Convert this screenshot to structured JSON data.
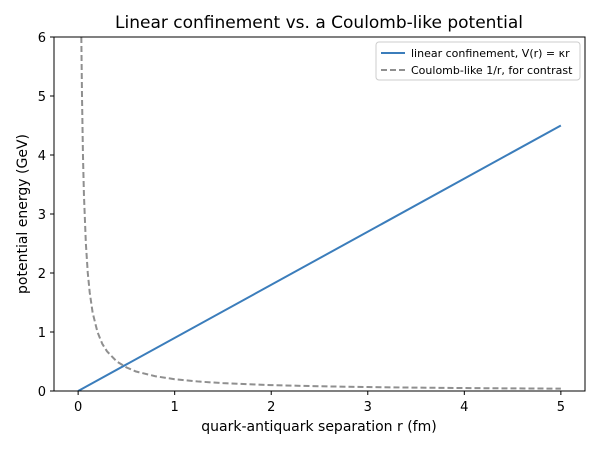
{
  "chart_data": {
    "type": "line",
    "title": "Linear confinement vs. a Coulomb-like potential",
    "xlabel": "quark-antiquark separation r (fm)",
    "ylabel": "potential energy (GeV)",
    "xlim": [
      -0.25,
      5.25
    ],
    "ylim": [
      0,
      6
    ],
    "xticks": [
      0,
      1,
      2,
      3,
      4,
      5
    ],
    "yticks": [
      0,
      1,
      2,
      3,
      4,
      5,
      6
    ],
    "grid": false,
    "legend_position": "top-right",
    "series": [
      {
        "name": "linear confinement, V(r) = κr",
        "style": "solid",
        "color": "#3b7dbb",
        "x": [
          0,
          5
        ],
        "y": [
          0,
          4.5
        ]
      },
      {
        "name": "Coulomb-like 1/r, for contrast",
        "style": "dashed",
        "color": "#8f8f8f",
        "x": [
          0.033,
          0.04,
          0.05,
          0.06,
          0.08,
          0.1,
          0.12,
          0.15,
          0.2,
          0.25,
          0.3,
          0.4,
          0.5,
          0.6,
          0.8,
          1.0,
          1.25,
          1.5,
          2.0,
          2.5,
          3.0,
          3.5,
          4.0,
          4.5,
          5.0
        ],
        "y": [
          6.0,
          5.0,
          4.0,
          3.33,
          2.5,
          2.0,
          1.67,
          1.33,
          1.0,
          0.8,
          0.67,
          0.5,
          0.4,
          0.33,
          0.25,
          0.2,
          0.16,
          0.133,
          0.1,
          0.08,
          0.067,
          0.057,
          0.05,
          0.044,
          0.04
        ]
      }
    ]
  }
}
